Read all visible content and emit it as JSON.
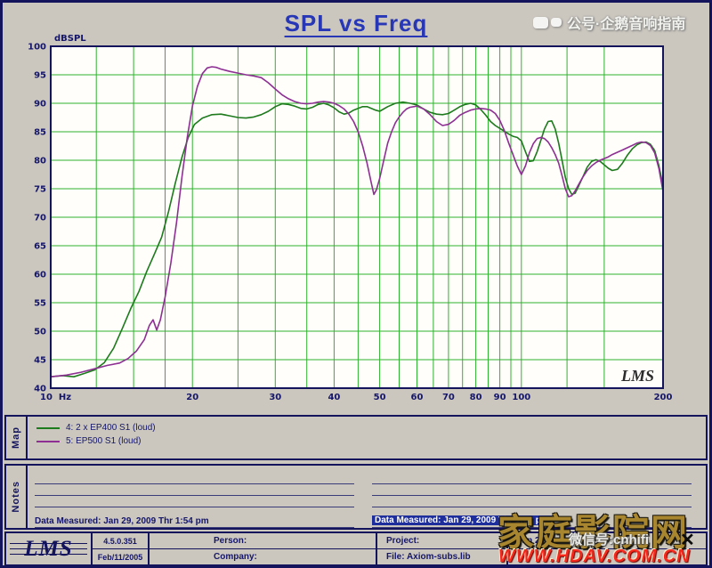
{
  "title": "SPL vs Freq",
  "watermark_top": {
    "text": "公号·企鹅音响指南"
  },
  "chart_data": {
    "type": "line",
    "title": "SPL vs Freq",
    "ylabel": "dBSPL",
    "x_unit": "Hz",
    "x_scale": "log",
    "xlim": [
      10,
      200
    ],
    "ylim": [
      40,
      100
    ],
    "grid": true,
    "grid_color": "#2db32d",
    "plot_watermark": "LMS",
    "legend_position": "map-panel-below",
    "y_ticks": [
      100,
      95,
      90,
      85,
      80,
      75,
      70,
      65,
      60,
      55,
      50,
      45,
      40
    ],
    "y_gridlines": [
      45,
      50,
      55,
      60,
      65,
      70,
      75,
      80,
      85,
      90,
      95
    ],
    "x_gridlines": [
      12.5,
      15,
      17.5,
      20,
      25,
      30,
      35,
      40,
      45,
      50,
      55,
      60,
      65,
      70,
      75,
      80,
      85,
      90,
      95,
      100,
      125,
      150
    ],
    "x_ticks": [
      {
        "f": 10,
        "label": "10  Hz"
      },
      {
        "f": 20,
        "label": "20"
      },
      {
        "f": 30,
        "label": "30"
      },
      {
        "f": 40,
        "label": "40"
      },
      {
        "f": 50,
        "label": "50"
      },
      {
        "f": 60,
        "label": "60"
      },
      {
        "f": 70,
        "label": "70"
      },
      {
        "f": 80,
        "label": "80"
      },
      {
        "f": 90,
        "label": "90"
      },
      {
        "f": 100,
        "label": "100"
      },
      {
        "f": 200,
        "label": "200"
      }
    ],
    "series": [
      {
        "name": "4: 2 x EP400 S1 (loud)",
        "color": "#1d7a1d",
        "points": [
          [
            10,
            42
          ],
          [
            10.6,
            42.2
          ],
          [
            11.2,
            42
          ],
          [
            11.8,
            42.6
          ],
          [
            12.4,
            43.2
          ],
          [
            13,
            44.5
          ],
          [
            13.6,
            47
          ],
          [
            14.2,
            50.5
          ],
          [
            14.8,
            54
          ],
          [
            15.4,
            57
          ],
          [
            16,
            60.5
          ],
          [
            16.6,
            63.5
          ],
          [
            17.2,
            66.5
          ],
          [
            17.8,
            71
          ],
          [
            18.4,
            76
          ],
          [
            19,
            80.5
          ],
          [
            19.6,
            84
          ],
          [
            20.2,
            86.3
          ],
          [
            21,
            87.4
          ],
          [
            22,
            88
          ],
          [
            23,
            88.1
          ],
          [
            24,
            87.8
          ],
          [
            25,
            87.5
          ],
          [
            26,
            87.4
          ],
          [
            27,
            87.6
          ],
          [
            28,
            88
          ],
          [
            29,
            88.6
          ],
          [
            30,
            89.4
          ],
          [
            31,
            89.9
          ],
          [
            32,
            89.8
          ],
          [
            33,
            89.5
          ],
          [
            34,
            89.1
          ],
          [
            35,
            89
          ],
          [
            36,
            89.3
          ],
          [
            37,
            89.8
          ],
          [
            38,
            90
          ],
          [
            39,
            89.7
          ],
          [
            40,
            89.2
          ],
          [
            41,
            88.5
          ],
          [
            42,
            88.1
          ],
          [
            43,
            88.3
          ],
          [
            44,
            88.8
          ],
          [
            45,
            89.1
          ],
          [
            46,
            89.4
          ],
          [
            47,
            89.4
          ],
          [
            48,
            89.1
          ],
          [
            49,
            88.8
          ],
          [
            50,
            88.6
          ],
          [
            52,
            89.4
          ],
          [
            54,
            90
          ],
          [
            56,
            90.2
          ],
          [
            58,
            90
          ],
          [
            60,
            89.7
          ],
          [
            62,
            89
          ],
          [
            64,
            88.4
          ],
          [
            66,
            88.1
          ],
          [
            68,
            88
          ],
          [
            70,
            88.2
          ],
          [
            72,
            88.8
          ],
          [
            74,
            89.4
          ],
          [
            76,
            89.8
          ],
          [
            78,
            90
          ],
          [
            80,
            89.7
          ],
          [
            82,
            88.9
          ],
          [
            84,
            87.9
          ],
          [
            86,
            86.8
          ],
          [
            88,
            86.1
          ],
          [
            90,
            85.6
          ],
          [
            92,
            85.1
          ],
          [
            94,
            84.6
          ],
          [
            96,
            84.2
          ],
          [
            98,
            84
          ],
          [
            100,
            83.4
          ],
          [
            102,
            81.5
          ],
          [
            104,
            79.8
          ],
          [
            106,
            79.9
          ],
          [
            108,
            81.5
          ],
          [
            110,
            83.5
          ],
          [
            112,
            85.5
          ],
          [
            114,
            86.8
          ],
          [
            116,
            86.9
          ],
          [
            118,
            85.5
          ],
          [
            120,
            83
          ],
          [
            122,
            80
          ],
          [
            124,
            77
          ],
          [
            126,
            75
          ],
          [
            128,
            74
          ],
          [
            130,
            74.2
          ],
          [
            132,
            75.3
          ],
          [
            135,
            77
          ],
          [
            138,
            78.8
          ],
          [
            141,
            79.8
          ],
          [
            144,
            80.1
          ],
          [
            147,
            79.8
          ],
          [
            150,
            79.2
          ],
          [
            153,
            78.6
          ],
          [
            156,
            78.2
          ],
          [
            160,
            78.4
          ],
          [
            164,
            79.5
          ],
          [
            168,
            80.9
          ],
          [
            172,
            82
          ],
          [
            176,
            82.7
          ],
          [
            180,
            83.1
          ],
          [
            184,
            83.2
          ],
          [
            188,
            82.8
          ],
          [
            192,
            81.7
          ],
          [
            196,
            79
          ],
          [
            200,
            75.5
          ]
        ]
      },
      {
        "name": "5: EP500 S1 (loud)",
        "color": "#8d2f93",
        "points": [
          [
            10,
            42
          ],
          [
            10.8,
            42.3
          ],
          [
            11.6,
            42.8
          ],
          [
            12.4,
            43.4
          ],
          [
            13.2,
            44
          ],
          [
            14,
            44.4
          ],
          [
            14.6,
            45.2
          ],
          [
            15.2,
            46.5
          ],
          [
            15.8,
            48.5
          ],
          [
            16.2,
            51
          ],
          [
            16.5,
            52
          ],
          [
            16.8,
            50.2
          ],
          [
            17.1,
            52
          ],
          [
            17.5,
            56
          ],
          [
            18,
            62
          ],
          [
            18.5,
            69
          ],
          [
            19,
            77
          ],
          [
            19.5,
            84
          ],
          [
            20,
            89.5
          ],
          [
            20.5,
            93
          ],
          [
            21,
            95.2
          ],
          [
            21.5,
            96.2
          ],
          [
            22,
            96.4
          ],
          [
            22.5,
            96.3
          ],
          [
            23,
            96
          ],
          [
            24,
            95.6
          ],
          [
            25,
            95.3
          ],
          [
            26,
            95
          ],
          [
            27,
            94.8
          ],
          [
            28,
            94.5
          ],
          [
            29,
            93.6
          ],
          [
            30,
            92.5
          ],
          [
            31,
            91.5
          ],
          [
            32,
            90.8
          ],
          [
            33,
            90.3
          ],
          [
            34,
            90
          ],
          [
            35,
            89.9
          ],
          [
            36,
            90
          ],
          [
            37,
            90.2
          ],
          [
            38,
            90.3
          ],
          [
            39,
            90.2
          ],
          [
            40,
            90
          ],
          [
            41,
            89.6
          ],
          [
            42,
            89
          ],
          [
            43,
            88.1
          ],
          [
            44,
            86.8
          ],
          [
            45,
            85
          ],
          [
            46,
            82.5
          ],
          [
            47,
            79.5
          ],
          [
            48,
            76
          ],
          [
            48.6,
            74
          ],
          [
            49.2,
            74.8
          ],
          [
            50,
            76.8
          ],
          [
            51,
            80
          ],
          [
            52,
            83
          ],
          [
            53,
            85
          ],
          [
            54,
            86.6
          ],
          [
            55,
            87.6
          ],
          [
            56,
            88.4
          ],
          [
            57,
            89
          ],
          [
            58,
            89.3
          ],
          [
            60,
            89.5
          ],
          [
            62,
            89
          ],
          [
            64,
            88
          ],
          [
            66,
            86.8
          ],
          [
            68,
            86.1
          ],
          [
            70,
            86.3
          ],
          [
            72,
            87
          ],
          [
            74,
            87.9
          ],
          [
            76,
            88.4
          ],
          [
            78,
            88.8
          ],
          [
            80,
            89
          ],
          [
            82,
            89.1
          ],
          [
            84,
            89
          ],
          [
            86,
            88.8
          ],
          [
            88,
            88.2
          ],
          [
            90,
            87
          ],
          [
            92,
            85.2
          ],
          [
            94,
            83
          ],
          [
            96,
            81
          ],
          [
            98,
            79
          ],
          [
            100,
            77.5
          ],
          [
            102,
            79
          ],
          [
            104,
            81.3
          ],
          [
            106,
            82.9
          ],
          [
            108,
            83.8
          ],
          [
            110,
            84
          ],
          [
            112,
            83.8
          ],
          [
            114,
            83.2
          ],
          [
            116,
            82.2
          ],
          [
            118,
            81
          ],
          [
            120,
            79.5
          ],
          [
            122,
            77.3
          ],
          [
            124,
            75
          ],
          [
            126,
            73.6
          ],
          [
            128,
            73.8
          ],
          [
            130,
            74.6
          ],
          [
            132,
            75.6
          ],
          [
            135,
            77
          ],
          [
            138,
            78.2
          ],
          [
            141,
            79
          ],
          [
            144,
            79.6
          ],
          [
            147,
            80
          ],
          [
            150,
            80.3
          ],
          [
            153,
            80.6
          ],
          [
            156,
            81
          ],
          [
            160,
            81.4
          ],
          [
            164,
            81.8
          ],
          [
            168,
            82.2
          ],
          [
            172,
            82.6
          ],
          [
            176,
            83
          ],
          [
            180,
            83.2
          ],
          [
            184,
            83.1
          ],
          [
            188,
            82.6
          ],
          [
            192,
            81.3
          ],
          [
            196,
            78.5
          ],
          [
            200,
            74.5
          ]
        ]
      }
    ]
  },
  "map": {
    "label": "Map"
  },
  "notes": {
    "label": "Notes",
    "measured_left": "Data Measured: Jan 29, 2009  Thr  1:54 pm",
    "measured_right": "Data Measured: Jan 29, 2009  Thr  1:56 pm"
  },
  "footer": {
    "logo": "LMS",
    "version": "4.5.0.351",
    "build_date": "Feb/11/2005",
    "person_label": "Person:",
    "company_label": "Company:",
    "project_label": "Project:",
    "file_label": "File: Axiom-subs.lib",
    "measured_date": "Jan 29,"
  },
  "watermark_bottom": {
    "wechat": "微信号:cnhifi",
    "site_name": "家庭影院网",
    "site_url": "WWW.HDAV.COM.CN",
    "close": "✕"
  }
}
